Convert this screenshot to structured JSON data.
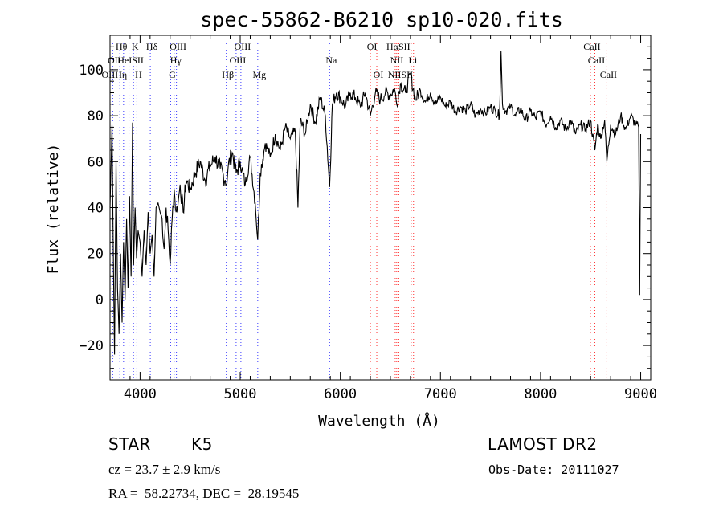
{
  "chart_data": {
    "type": "line",
    "title": "spec-55862-B6210_sp10-020.fits",
    "xlabel": "Wavelength (Å)",
    "ylabel": "Flux (relative)",
    "xlim": [
      3700,
      9100
    ],
    "ylim": [
      -35,
      115
    ],
    "xticks": [
      4000,
      5000,
      6000,
      7000,
      8000,
      9000
    ],
    "yticks": [
      -20,
      0,
      20,
      40,
      60,
      80,
      100
    ],
    "series": [
      {
        "color": "#000000",
        "x": [
          3700,
          3720,
          3735,
          3745,
          3760,
          3775,
          3790,
          3805,
          3820,
          3835,
          3850,
          3865,
          3880,
          3895,
          3910,
          3925,
          3935,
          3950,
          3965,
          3980,
          4000,
          4020,
          4040,
          4060,
          4080,
          4100,
          4120,
          4140,
          4160,
          4180,
          4200,
          4220,
          4240,
          4260,
          4280,
          4300,
          4320,
          4340,
          4360,
          4380,
          4400,
          4430,
          4460,
          4500,
          4550,
          4600,
          4650,
          4700,
          4750,
          4800,
          4850,
          4861,
          4880,
          4920,
          4960,
          5000,
          5050,
          5100,
          5150,
          5175,
          5200,
          5250,
          5300,
          5350,
          5400,
          5450,
          5500,
          5550,
          5577,
          5600,
          5650,
          5700,
          5750,
          5800,
          5850,
          5893,
          5920,
          5960,
          6000,
          6050,
          6100,
          6150,
          6200,
          6250,
          6300,
          6350,
          6400,
          6450,
          6500,
          6540,
          6563,
          6600,
          6650,
          6700,
          6750,
          6800,
          6850,
          6900,
          6950,
          7000,
          7050,
          7100,
          7150,
          7200,
          7250,
          7300,
          7350,
          7400,
          7450,
          7500,
          7550,
          7590,
          7605,
          7620,
          7650,
          7700,
          7750,
          7800,
          7850,
          7900,
          7950,
          8000,
          8050,
          8100,
          8150,
          8200,
          8250,
          8300,
          8350,
          8400,
          8450,
          8498,
          8542,
          8570,
          8600,
          8640,
          8662,
          8700,
          8750,
          8800,
          8850,
          8900,
          8950,
          8980,
          8990,
          9000
        ],
        "values": [
          40,
          76,
          10,
          -24,
          60,
          5,
          -15,
          20,
          -10,
          25,
          0,
          35,
          5,
          45,
          10,
          77,
          15,
          40,
          18,
          30,
          25,
          10,
          30,
          15,
          38,
          20,
          28,
          10,
          40,
          42,
          38,
          35,
          22,
          40,
          30,
          15,
          35,
          48,
          38,
          42,
          50,
          38,
          52,
          48,
          55,
          60,
          52,
          58,
          62,
          57,
          52,
          50,
          58,
          64,
          55,
          60,
          50,
          62,
          42,
          26,
          55,
          68,
          62,
          72,
          65,
          75,
          70,
          73,
          40,
          78,
          72,
          85,
          77,
          88,
          80,
          49,
          85,
          90,
          88,
          84,
          90,
          88,
          84,
          90,
          80,
          90,
          87,
          90,
          89,
          92,
          85,
          94,
          90,
          98,
          87,
          91,
          86,
          90,
          85,
          88,
          84,
          86,
          82,
          84,
          82,
          85,
          80,
          83,
          81,
          84,
          82,
          80,
          108,
          85,
          82,
          84,
          80,
          83,
          78,
          82,
          79,
          82,
          76,
          80,
          75,
          78,
          74,
          78,
          72,
          76,
          74,
          78,
          65,
          76,
          70,
          78,
          60,
          76,
          72,
          80,
          74,
          80,
          76,
          75,
          2,
          72
        ]
      }
    ],
    "line_labels": [
      {
        "label": "Hθ",
        "wavelength": 3798,
        "row": 1
      },
      {
        "label": "K",
        "wavelength": 3934,
        "row": 1
      },
      {
        "label": "Hδ",
        "wavelength": 4102,
        "row": 1
      },
      {
        "label": "OIII",
        "wavelength": 4363,
        "row": 1
      },
      {
        "label": "OIII",
        "wavelength": 5007,
        "row": 1
      },
      {
        "label": "OI",
        "wavelength": 6300,
        "row": 1
      },
      {
        "label": "HαSII",
        "wavelength": 6563,
        "row": 1
      },
      {
        "label": "CaII",
        "wavelength": 8498,
        "row": 1
      },
      {
        "label": "OII",
        "wavelength": 3727,
        "row": 2
      },
      {
        "label": "HeISII",
        "wavelength": 3889,
        "row": 2
      },
      {
        "label": "Hγ",
        "wavelength": 4340,
        "row": 2
      },
      {
        "label": "OIII",
        "wavelength": 4959,
        "row": 2
      },
      {
        "label": "Na",
        "wavelength": 5893,
        "row": 2
      },
      {
        "label": "NII",
        "wavelength": 6548,
        "row": 2
      },
      {
        "label": "Li",
        "wavelength": 6708,
        "row": 2
      },
      {
        "label": "CaII",
        "wavelength": 8542,
        "row": 2
      },
      {
        "label": "OIIHη",
        "wavelength": 3727,
        "row": 3
      },
      {
        "label": "H",
        "wavelength": 3968,
        "row": 3
      },
      {
        "label": "G",
        "wavelength": 4305,
        "row": 3
      },
      {
        "label": "Hβ",
        "wavelength": 4861,
        "row": 3
      },
      {
        "label": "Mg",
        "wavelength": 5175,
        "row": 3
      },
      {
        "label": "OI",
        "wavelength": 6364,
        "row": 3
      },
      {
        "label": "NIISII",
        "wavelength": 6584,
        "row": 3
      },
      {
        "label": "CaII",
        "wavelength": 8662,
        "row": 3
      }
    ],
    "line_markers": [
      3727,
      3798,
      3835,
      3889,
      3934,
      3968,
      4102,
      4305,
      4340,
      4363,
      4861,
      4959,
      5007,
      5175,
      5893,
      6300,
      6364,
      6548,
      6563,
      6584,
      6708,
      6731,
      8498,
      8542,
      8662
    ],
    "marker_colors": {
      "blue": "#3a3aff",
      "red": "#ff3030"
    }
  },
  "info": {
    "object_type": "STAR",
    "subclass": "K5",
    "survey": "LAMOST DR2",
    "redshift_text": "cz = 23.7 ± 2.9 km/s",
    "obs_date_text": "Obs-Date: 20111027",
    "coords_text": "RA =  58.22734, DEC =  28.19545"
  }
}
